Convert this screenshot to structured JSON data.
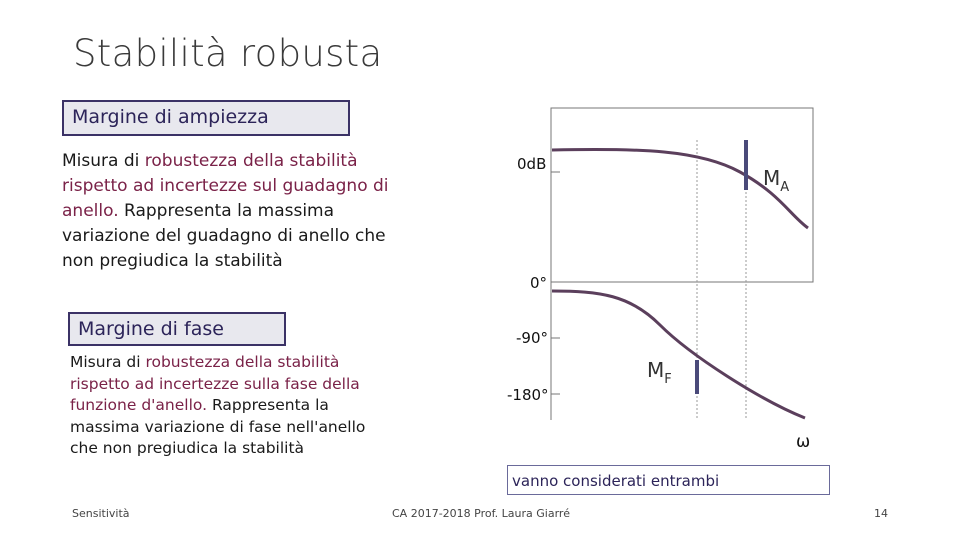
{
  "slide": {
    "title": "Stabilità robusta",
    "amp_heading": "Margine di ampiezza",
    "amp_text_1": "Misura di ",
    "amp_text_hl": "robustezza della stabilità rispetto ad incertezze sul guadagno di anello.",
    "amp_text_2": " Rappresenta la massima variazione del guadagno di anello che non pregiudica la stabilità",
    "fase_heading": "Margine di fase",
    "fase_text_1": "Misura di ",
    "fase_text_hl": "robustezza della stabilità rispetto ad incertezze sulla fase della funzione d'anello.",
    "fase_text_2": " Rappresenta la massima variazione di fase nell'anello che non pregiudica la stabilità",
    "note": "vanno considerati entrambi"
  },
  "plot": {
    "label_0db": "0dB",
    "label_ma": "M",
    "label_ma_sub": "A",
    "label_0deg": "0°",
    "label_m90": "-90°",
    "label_m180": "-180°",
    "label_mf": "M",
    "label_mf_sub": "F",
    "label_omega": "ω",
    "curve_color": "#5b3f5c",
    "marker_color": "#4a4a7a"
  },
  "footer": {
    "left": "Sensitività",
    "center": "CA 2017-2018 Prof. Laura Giarré",
    "page": "14"
  }
}
